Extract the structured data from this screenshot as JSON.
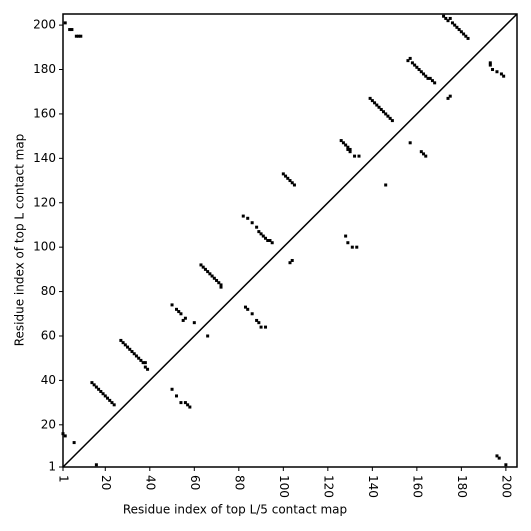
{
  "chart_data": {
    "type": "scatter",
    "xlabel": "Residue index of top L/5 contact map",
    "ylabel": "Residue index of top L contact map",
    "color": "#000000",
    "xlim": [
      1,
      205
    ],
    "ylim": [
      1,
      205
    ],
    "xticks": [
      1,
      20,
      40,
      60,
      80,
      100,
      120,
      140,
      160,
      180,
      200
    ],
    "yticks": [
      1,
      20,
      40,
      60,
      80,
      100,
      120,
      140,
      160,
      180,
      200
    ],
    "x": [
      2,
      4,
      5,
      7,
      8,
      9,
      1,
      2,
      6,
      14,
      15,
      16,
      17,
      18,
      19,
      20,
      21,
      22,
      23,
      24,
      27,
      28,
      29,
      30,
      31,
      32,
      33,
      34,
      35,
      36,
      37,
      38,
      38,
      39,
      50,
      52,
      53,
      54,
      55,
      56,
      60,
      63,
      64,
      65,
      66,
      67,
      68,
      69,
      70,
      71,
      72,
      72,
      82,
      84,
      86,
      88,
      89,
      90,
      91,
      92,
      93,
      94,
      95,
      100,
      101,
      102,
      103,
      104,
      105,
      126,
      127,
      128,
      129,
      129,
      130,
      130,
      132,
      134,
      139,
      140,
      141,
      142,
      143,
      144,
      145,
      146,
      147,
      148,
      149,
      156,
      157,
      158,
      159,
      160,
      161,
      162,
      163,
      164,
      165,
      166,
      167,
      168,
      172,
      173,
      174,
      175,
      176,
      177,
      178,
      179,
      180,
      181,
      182,
      183,
      193,
      193,
      194,
      196,
      198,
      199,
      16,
      50,
      52,
      54,
      56,
      57,
      58,
      66,
      83,
      84,
      86,
      88,
      89,
      90,
      92,
      104,
      103,
      128,
      129,
      131,
      133,
      146,
      157,
      162,
      163,
      164,
      174,
      175,
      196,
      197,
      200
    ],
    "values": [
      201,
      198,
      198,
      195,
      195,
      195,
      16,
      15,
      12,
      39,
      38,
      37,
      36,
      35,
      34,
      33,
      32,
      31,
      30,
      29,
      58,
      57,
      56,
      55,
      54,
      53,
      52,
      51,
      50,
      49,
      48,
      48,
      46,
      45,
      74,
      72,
      71,
      70,
      67,
      68,
      66,
      92,
      91,
      90,
      89,
      88,
      87,
      86,
      85,
      84,
      83,
      82,
      114,
      113,
      111,
      109,
      107,
      106,
      105,
      104,
      103,
      103,
      102,
      133,
      132,
      131,
      130,
      129,
      128,
      148,
      147,
      146,
      145,
      144,
      144,
      143,
      141,
      141,
      167,
      166,
      165,
      164,
      163,
      162,
      161,
      160,
      159,
      158,
      157,
      184,
      185,
      183,
      182,
      181,
      180,
      179,
      178,
      177,
      176,
      176,
      175,
      174,
      204,
      203,
      202,
      203,
      201,
      200,
      199,
      198,
      197,
      196,
      195,
      194,
      183,
      182,
      180,
      179,
      178,
      177,
      2,
      36,
      33,
      30,
      30,
      29,
      28,
      60,
      73,
      72,
      70,
      67,
      66,
      64,
      64,
      94,
      93,
      105,
      102,
      100,
      100,
      128,
      147,
      143,
      142,
      141,
      167,
      168,
      6,
      5,
      2
    ]
  }
}
